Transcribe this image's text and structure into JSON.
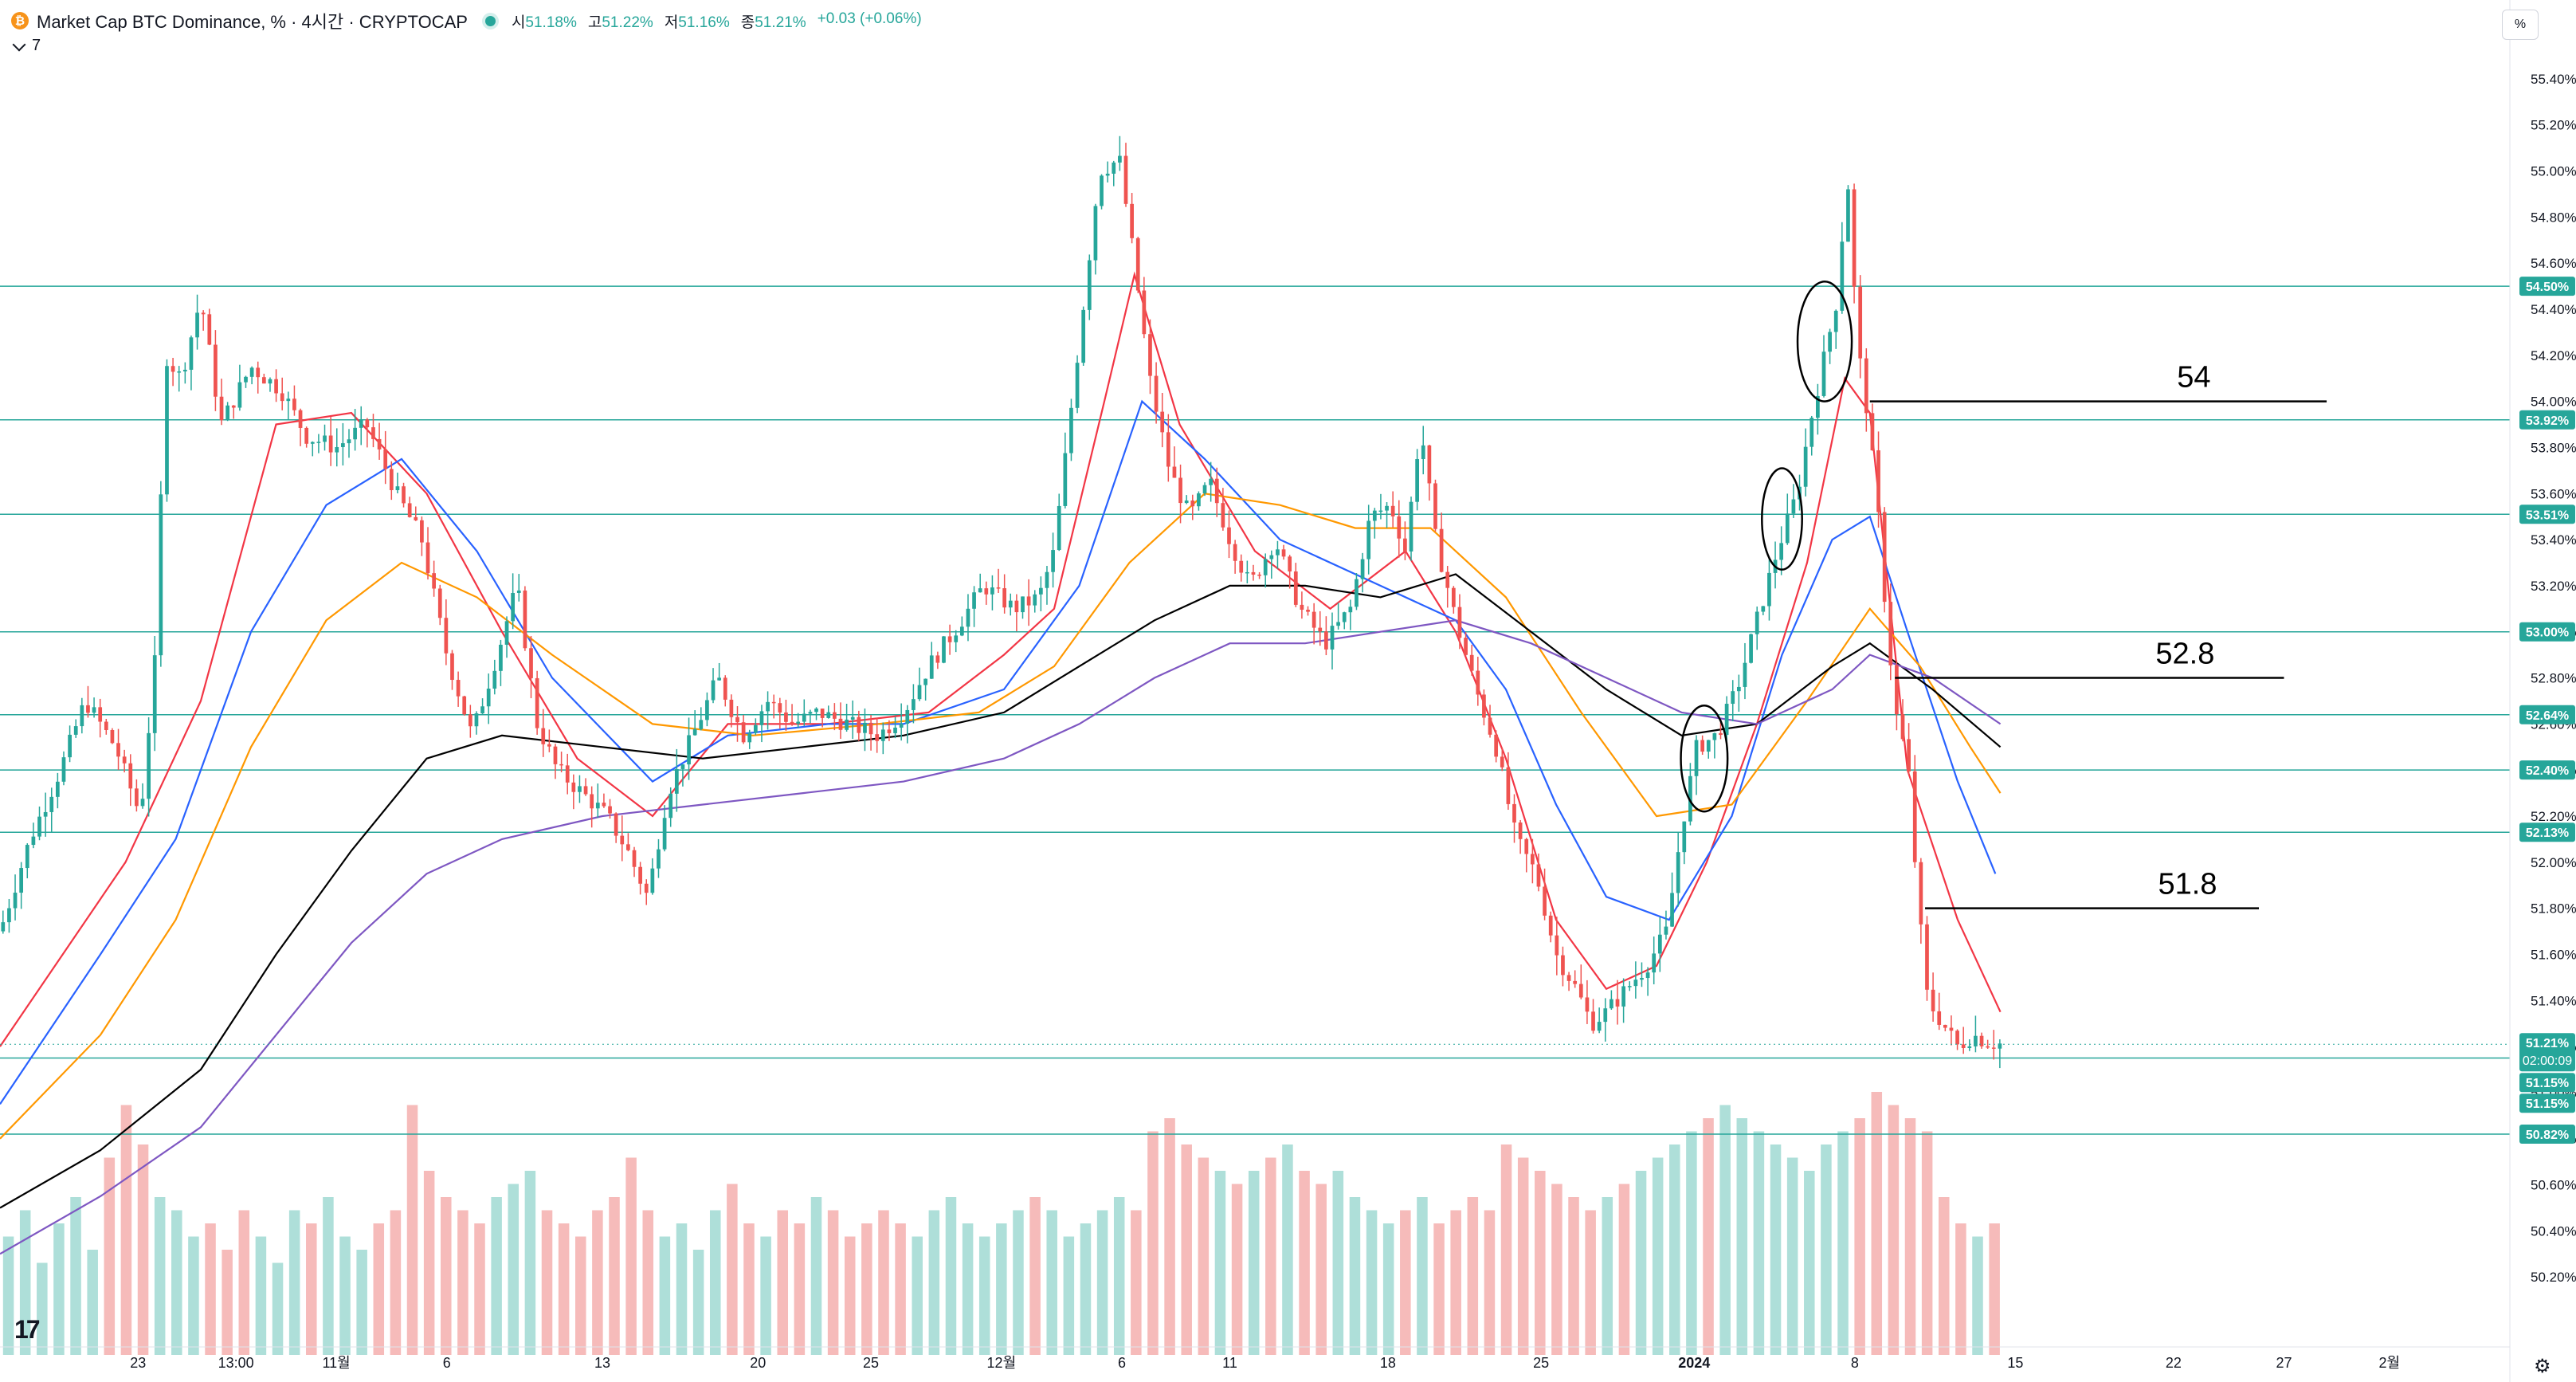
{
  "header": {
    "coin_symbol": "₿",
    "title": "Market Cap BTC Dominance, % · 4시간 · CRYPTOCAP",
    "open_label": "시",
    "open_value": "51.18%",
    "high_label": "고",
    "high_value": "51.22%",
    "low_label": "저",
    "low_value": "51.16%",
    "close_label": "종",
    "close_value": "51.21%",
    "change": "+0.03 (+0.06%)",
    "indicator_count": "7"
  },
  "unit_button": "%",
  "colors": {
    "up": "#26a69a",
    "down": "#ef5350",
    "ma_red": "#f23645",
    "ma_blue": "#2962ff",
    "ma_orange": "#ff9800",
    "ma_black": "#000000",
    "ma_purple": "#7e57c2",
    "level_line": "#26a69a"
  },
  "chart_data": {
    "type": "candlestick",
    "y_axis": {
      "unit": "%",
      "range": [
        50.0,
        55.5
      ],
      "ticks": [
        "55.40%",
        "55.20%",
        "55.00%",
        "54.80%",
        "54.60%",
        "54.40%",
        "54.20%",
        "54.00%",
        "53.80%",
        "53.60%",
        "53.40%",
        "53.20%",
        "53.00%",
        "52.80%",
        "52.60%",
        "52.40%",
        "52.20%",
        "52.00%",
        "51.80%",
        "51.60%",
        "51.40%",
        "51.20%",
        "51.00%",
        "50.80%",
        "50.60%",
        "50.40%",
        "50.20%"
      ]
    },
    "x_axis": {
      "ticks": [
        "23",
        "13:00",
        "11월",
        "6",
        "13",
        "20",
        "25",
        "12월",
        "6",
        "11",
        "18",
        "25",
        "2024",
        "8",
        "15",
        "22",
        "27",
        "2월"
      ]
    },
    "horizontal_levels": [
      54.5,
      53.92,
      53.51,
      53.0,
      52.64,
      52.4,
      52.13,
      51.15,
      50.82
    ],
    "price_labels": [
      {
        "value": 54.5,
        "text": "54.50%",
        "color": "#26a69a"
      },
      {
        "value": 53.92,
        "text": "53.92%",
        "color": "#26a69a"
      },
      {
        "value": 53.51,
        "text": "53.51%",
        "color": "#26a69a"
      },
      {
        "value": 53.0,
        "text": "53.00%",
        "color": "#26a69a"
      },
      {
        "value": 52.64,
        "text": "52.64%",
        "color": "#26a69a"
      },
      {
        "value": 52.4,
        "text": "52.40%",
        "color": "#26a69a"
      },
      {
        "value": 52.13,
        "text": "52.13%",
        "color": "#26a69a"
      },
      {
        "value": 50.82,
        "text": "50.82%",
        "color": "#26a69a"
      }
    ],
    "current_price": {
      "value": 51.21,
      "text": "51.21%",
      "countdown": "02:00:09"
    },
    "stacked_labels": [
      "51.15%",
      "51.15%"
    ],
    "annotations": [
      {
        "text": "54",
        "y": 54.0,
        "x_start": 0.745,
        "x_end": 0.927
      },
      {
        "text": "52.8",
        "y": 52.8,
        "x_start": 0.755,
        "x_end": 0.91
      },
      {
        "text": "51.8",
        "y": 51.8,
        "x_start": 0.767,
        "x_end": 0.9
      }
    ],
    "circles": [
      {
        "x": 0.679,
        "y": 52.45,
        "rx_frac": 0.0093,
        "ry": 0.23
      },
      {
        "x": 0.71,
        "y": 53.49,
        "rx_frac": 0.008,
        "ry": 0.22
      },
      {
        "x": 0.727,
        "y": 54.26,
        "rx_frac": 0.0108,
        "ry": 0.26
      }
    ],
    "price_path": [
      [
        0.0,
        51.7
      ],
      [
        0.012,
        52.1
      ],
      [
        0.024,
        52.4
      ],
      [
        0.034,
        52.7
      ],
      [
        0.046,
        52.5
      ],
      [
        0.056,
        52.2
      ],
      [
        0.062,
        52.9
      ],
      [
        0.066,
        54.2
      ],
      [
        0.072,
        54.1
      ],
      [
        0.08,
        54.45
      ],
      [
        0.088,
        53.9
      ],
      [
        0.1,
        54.15
      ],
      [
        0.112,
        54.05
      ],
      [
        0.122,
        53.85
      ],
      [
        0.134,
        53.8
      ],
      [
        0.146,
        53.9
      ],
      [
        0.158,
        53.6
      ],
      [
        0.168,
        53.4
      ],
      [
        0.178,
        52.9
      ],
      [
        0.188,
        52.55
      ],
      [
        0.198,
        52.9
      ],
      [
        0.206,
        53.2
      ],
      [
        0.214,
        52.6
      ],
      [
        0.222,
        52.4
      ],
      [
        0.232,
        52.3
      ],
      [
        0.242,
        52.2
      ],
      [
        0.25,
        52.05
      ],
      [
        0.258,
        51.85
      ],
      [
        0.266,
        52.3
      ],
      [
        0.276,
        52.55
      ],
      [
        0.286,
        52.8
      ],
      [
        0.296,
        52.55
      ],
      [
        0.306,
        52.7
      ],
      [
        0.316,
        52.6
      ],
      [
        0.326,
        52.65
      ],
      [
        0.338,
        52.6
      ],
      [
        0.35,
        52.55
      ],
      [
        0.36,
        52.65
      ],
      [
        0.37,
        52.85
      ],
      [
        0.38,
        53.0
      ],
      [
        0.392,
        53.2
      ],
      [
        0.404,
        53.1
      ],
      [
        0.414,
        53.15
      ],
      [
        0.42,
        53.35
      ],
      [
        0.426,
        53.9
      ],
      [
        0.432,
        54.45
      ],
      [
        0.438,
        55.0
      ],
      [
        0.446,
        55.05
      ],
      [
        0.452,
        54.6
      ],
      [
        0.458,
        54.1
      ],
      [
        0.466,
        53.7
      ],
      [
        0.474,
        53.5
      ],
      [
        0.482,
        53.65
      ],
      [
        0.49,
        53.4
      ],
      [
        0.498,
        53.2
      ],
      [
        0.508,
        53.4
      ],
      [
        0.518,
        53.1
      ],
      [
        0.528,
        52.95
      ],
      [
        0.538,
        53.1
      ],
      [
        0.546,
        53.5
      ],
      [
        0.554,
        53.55
      ],
      [
        0.56,
        53.35
      ],
      [
        0.566,
        53.9
      ],
      [
        0.572,
        53.4
      ],
      [
        0.58,
        53.05
      ],
      [
        0.588,
        52.75
      ],
      [
        0.596,
        52.5
      ],
      [
        0.604,
        52.1
      ],
      [
        0.612,
        51.95
      ],
      [
        0.62,
        51.6
      ],
      [
        0.628,
        51.45
      ],
      [
        0.634,
        51.3
      ],
      [
        0.64,
        51.35
      ],
      [
        0.648,
        51.45
      ],
      [
        0.656,
        51.55
      ],
      [
        0.664,
        51.7
      ],
      [
        0.67,
        52.15
      ],
      [
        0.676,
        52.5
      ],
      [
        0.684,
        52.55
      ],
      [
        0.692,
        52.75
      ],
      [
        0.7,
        53.05
      ],
      [
        0.708,
        53.35
      ],
      [
        0.716,
        53.6
      ],
      [
        0.722,
        53.95
      ],
      [
        0.726,
        54.15
      ],
      [
        0.732,
        54.45
      ],
      [
        0.736,
        55.0
      ],
      [
        0.74,
        54.25
      ],
      [
        0.744,
        53.95
      ],
      [
        0.748,
        53.55
      ],
      [
        0.752,
        53.0
      ],
      [
        0.756,
        52.6
      ],
      [
        0.76,
        52.45
      ],
      [
        0.764,
        51.85
      ],
      [
        0.768,
        51.4
      ],
      [
        0.774,
        51.3
      ],
      [
        0.78,
        51.2
      ],
      [
        0.786,
        51.25
      ],
      [
        0.792,
        51.22
      ],
      [
        0.798,
        51.21
      ]
    ],
    "moving_averages": [
      {
        "color": "#f23645",
        "points": [
          [
            0.0,
            51.2
          ],
          [
            0.05,
            52.0
          ],
          [
            0.08,
            52.7
          ],
          [
            0.11,
            53.9
          ],
          [
            0.14,
            53.95
          ],
          [
            0.17,
            53.6
          ],
          [
            0.2,
            53.0
          ],
          [
            0.23,
            52.45
          ],
          [
            0.26,
            52.2
          ],
          [
            0.29,
            52.6
          ],
          [
            0.33,
            52.6
          ],
          [
            0.37,
            52.65
          ],
          [
            0.4,
            52.9
          ],
          [
            0.42,
            53.1
          ],
          [
            0.44,
            54.0
          ],
          [
            0.452,
            54.55
          ],
          [
            0.47,
            53.9
          ],
          [
            0.5,
            53.35
          ],
          [
            0.53,
            53.1
          ],
          [
            0.56,
            53.35
          ],
          [
            0.58,
            53.0
          ],
          [
            0.6,
            52.45
          ],
          [
            0.62,
            51.75
          ],
          [
            0.64,
            51.45
          ],
          [
            0.66,
            51.55
          ],
          [
            0.68,
            52.0
          ],
          [
            0.7,
            52.6
          ],
          [
            0.72,
            53.3
          ],
          [
            0.735,
            54.1
          ],
          [
            0.745,
            53.95
          ],
          [
            0.76,
            52.4
          ],
          [
            0.78,
            51.75
          ],
          [
            0.797,
            51.35
          ]
        ]
      },
      {
        "color": "#2962ff",
        "points": [
          [
            0.0,
            50.95
          ],
          [
            0.04,
            51.6
          ],
          [
            0.07,
            52.1
          ],
          [
            0.1,
            53.0
          ],
          [
            0.13,
            53.55
          ],
          [
            0.16,
            53.75
          ],
          [
            0.19,
            53.35
          ],
          [
            0.22,
            52.8
          ],
          [
            0.26,
            52.35
          ],
          [
            0.29,
            52.55
          ],
          [
            0.33,
            52.6
          ],
          [
            0.36,
            52.6
          ],
          [
            0.4,
            52.75
          ],
          [
            0.43,
            53.2
          ],
          [
            0.455,
            54.0
          ],
          [
            0.48,
            53.75
          ],
          [
            0.51,
            53.4
          ],
          [
            0.55,
            53.2
          ],
          [
            0.58,
            53.05
          ],
          [
            0.6,
            52.75
          ],
          [
            0.62,
            52.25
          ],
          [
            0.64,
            51.85
          ],
          [
            0.665,
            51.75
          ],
          [
            0.69,
            52.2
          ],
          [
            0.71,
            52.9
          ],
          [
            0.73,
            53.4
          ],
          [
            0.745,
            53.5
          ],
          [
            0.76,
            53.0
          ],
          [
            0.78,
            52.35
          ],
          [
            0.795,
            51.95
          ]
        ]
      },
      {
        "color": "#ff9800",
        "points": [
          [
            0.0,
            50.8
          ],
          [
            0.04,
            51.25
          ],
          [
            0.07,
            51.75
          ],
          [
            0.1,
            52.5
          ],
          [
            0.13,
            53.05
          ],
          [
            0.16,
            53.3
          ],
          [
            0.19,
            53.15
          ],
          [
            0.22,
            52.9
          ],
          [
            0.26,
            52.6
          ],
          [
            0.3,
            52.55
          ],
          [
            0.35,
            52.6
          ],
          [
            0.39,
            52.65
          ],
          [
            0.42,
            52.85
          ],
          [
            0.45,
            53.3
          ],
          [
            0.48,
            53.6
          ],
          [
            0.51,
            53.55
          ],
          [
            0.54,
            53.45
          ],
          [
            0.57,
            53.45
          ],
          [
            0.6,
            53.15
          ],
          [
            0.63,
            52.65
          ],
          [
            0.66,
            52.2
          ],
          [
            0.69,
            52.25
          ],
          [
            0.72,
            52.7
          ],
          [
            0.745,
            53.1
          ],
          [
            0.765,
            52.85
          ],
          [
            0.785,
            52.5
          ],
          [
            0.797,
            52.3
          ]
        ]
      },
      {
        "color": "#000000",
        "points": [
          [
            0.0,
            50.5
          ],
          [
            0.04,
            50.75
          ],
          [
            0.08,
            51.1
          ],
          [
            0.11,
            51.6
          ],
          [
            0.14,
            52.05
          ],
          [
            0.17,
            52.45
          ],
          [
            0.2,
            52.55
          ],
          [
            0.24,
            52.5
          ],
          [
            0.28,
            52.45
          ],
          [
            0.32,
            52.5
          ],
          [
            0.36,
            52.55
          ],
          [
            0.4,
            52.65
          ],
          [
            0.43,
            52.85
          ],
          [
            0.46,
            53.05
          ],
          [
            0.49,
            53.2
          ],
          [
            0.52,
            53.2
          ],
          [
            0.55,
            53.15
          ],
          [
            0.58,
            53.25
          ],
          [
            0.61,
            53.0
          ],
          [
            0.64,
            52.75
          ],
          [
            0.67,
            52.55
          ],
          [
            0.7,
            52.6
          ],
          [
            0.73,
            52.85
          ],
          [
            0.745,
            52.95
          ],
          [
            0.77,
            52.75
          ],
          [
            0.797,
            52.5
          ]
        ]
      },
      {
        "color": "#7e57c2",
        "points": [
          [
            0.0,
            50.3
          ],
          [
            0.04,
            50.55
          ],
          [
            0.08,
            50.85
          ],
          [
            0.11,
            51.25
          ],
          [
            0.14,
            51.65
          ],
          [
            0.17,
            51.95
          ],
          [
            0.2,
            52.1
          ],
          [
            0.24,
            52.2
          ],
          [
            0.28,
            52.25
          ],
          [
            0.32,
            52.3
          ],
          [
            0.36,
            52.35
          ],
          [
            0.4,
            52.45
          ],
          [
            0.43,
            52.6
          ],
          [
            0.46,
            52.8
          ],
          [
            0.49,
            52.95
          ],
          [
            0.52,
            52.95
          ],
          [
            0.55,
            53.0
          ],
          [
            0.58,
            53.05
          ],
          [
            0.61,
            52.95
          ],
          [
            0.64,
            52.8
          ],
          [
            0.67,
            52.65
          ],
          [
            0.7,
            52.6
          ],
          [
            0.73,
            52.75
          ],
          [
            0.745,
            52.9
          ],
          [
            0.77,
            52.8
          ],
          [
            0.797,
            52.6
          ]
        ]
      }
    ],
    "volume_profile": [
      0.45,
      0.55,
      0.35,
      0.5,
      0.6,
      0.4,
      0.75,
      0.95,
      0.8,
      0.6,
      0.55,
      0.45,
      0.5,
      0.4,
      0.55,
      0.45,
      0.35,
      0.55,
      0.5,
      0.6,
      0.45,
      0.4,
      0.5,
      0.55,
      0.95,
      0.7,
      0.6,
      0.55,
      0.5,
      0.6,
      0.65,
      0.7,
      0.55,
      0.5,
      0.45,
      0.55,
      0.6,
      0.75,
      0.55,
      0.45,
      0.5,
      0.4,
      0.55,
      0.65,
      0.5,
      0.45,
      0.55,
      0.5,
      0.6,
      0.55,
      0.45,
      0.5,
      0.55,
      0.5,
      0.45,
      0.55,
      0.6,
      0.5,
      0.45,
      0.5,
      0.55,
      0.6,
      0.55,
      0.45,
      0.5,
      0.55,
      0.6,
      0.55,
      0.85,
      0.9,
      0.8,
      0.75,
      0.7,
      0.65,
      0.7,
      0.75,
      0.8,
      0.7,
      0.65,
      0.7,
      0.6,
      0.55,
      0.5,
      0.55,
      0.6,
      0.5,
      0.55,
      0.6,
      0.55,
      0.8,
      0.75,
      0.7,
      0.65,
      0.6,
      0.55,
      0.6,
      0.65,
      0.7,
      0.75,
      0.8,
      0.85,
      0.9,
      0.95,
      0.9,
      0.85,
      0.8,
      0.75,
      0.7,
      0.8,
      0.85,
      0.9,
      1.0,
      0.95,
      0.9,
      0.85,
      0.6,
      0.5,
      0.45,
      0.5
    ]
  }
}
